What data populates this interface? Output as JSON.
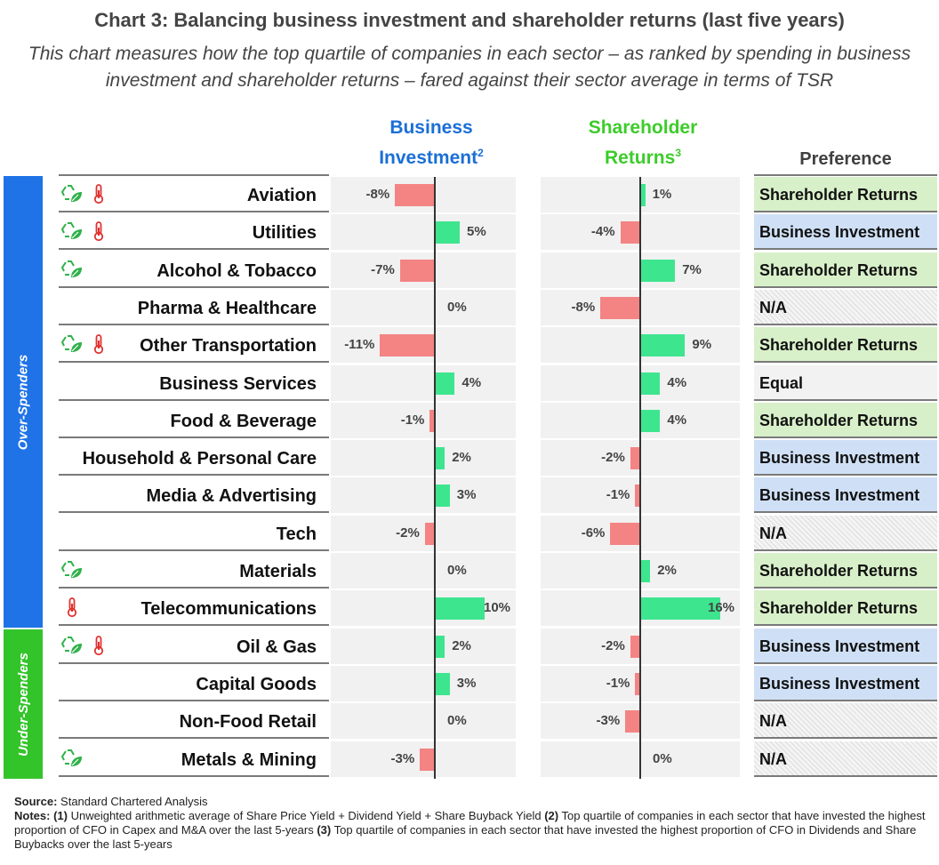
{
  "title": "Chart 3: Balancing business investment and shareholder returns (last five years)",
  "subtitle": "This chart measures how the top quartile of companies in each sector – as ranked by spending in business investment and shareholder returns – fared against their sector average in terms of TSR",
  "headers": {
    "investment_line1": "Business",
    "investment_line2": "Investment",
    "investment_note": "2",
    "returns_line1": "Shareholder",
    "returns_line2": "Returns",
    "returns_note": "3",
    "preference": "Preference"
  },
  "groups": {
    "over": "Over-Spenders",
    "under": "Under-Spenders"
  },
  "colors": {
    "investment_header": "#1a6fd6",
    "returns_header": "#3ccc2a",
    "over_spenders": "#1f73e6",
    "under_spenders": "#33c42a",
    "positive_bar": "#3ee58f",
    "negative_bar": "#f48383",
    "pref_shareholder": "#d8f0c9",
    "pref_business": "#cfe0f6",
    "pref_equal": "#f2f2f2",
    "pref_na": "#efefef"
  },
  "chart_data": {
    "type": "bar",
    "orientation": "horizontal",
    "ylim": [
      -12,
      16
    ],
    "categories": [
      "Aviation",
      "Utilities",
      "Alcohol & Tobacco",
      "Pharma & Healthcare",
      "Other Transportation",
      "Business Services",
      "Food & Beverage",
      "Household & Personal Care",
      "Media & Advertising",
      "Tech",
      "Materials",
      "Telecommunications",
      "Oil & Gas",
      "Capital Goods",
      "Non-Food Retail",
      "Metals & Mining"
    ],
    "series": [
      {
        "name": "Business Investment",
        "values": [
          -8,
          5,
          -7,
          0,
          -11,
          4,
          -1,
          2,
          3,
          -2,
          0,
          10,
          2,
          3,
          0,
          -3
        ],
        "labels": [
          "-8%",
          "5%",
          "-7%",
          "0%",
          "-11%",
          "4%",
          "-1%",
          "2%",
          "3%",
          "-2%",
          "0%",
          "10%",
          "2%",
          "3%",
          "0%",
          "-3%"
        ]
      },
      {
        "name": "Shareholder Returns",
        "values": [
          1,
          -4,
          7,
          -8,
          9,
          4,
          4,
          -2,
          -1,
          -6,
          2,
          16,
          -2,
          -1,
          -3,
          0
        ],
        "labels": [
          "1%",
          "-4%",
          "7%",
          "-8%",
          "9%",
          "4%",
          "4%",
          "-2%",
          "-1%",
          "-6%",
          "2%",
          "16%",
          "-2%",
          "-1%",
          "-3%",
          "0%"
        ]
      }
    ],
    "groups": [
      {
        "name": "Over-Spenders",
        "rows": 12
      },
      {
        "name": "Under-Spenders",
        "rows": 4
      }
    ],
    "preferences": [
      "Shareholder Returns",
      "Business Investment",
      "Shareholder Returns",
      "N/A",
      "Shareholder Returns",
      "Equal",
      "Shareholder Returns",
      "Business Investment",
      "Business Investment",
      "N/A",
      "Shareholder Returns",
      "Shareholder Returns",
      "Business Investment",
      "Business Investment",
      "N/A",
      "N/A"
    ],
    "icons": [
      [
        "recycle-leaf-icon",
        "thermometer-icon"
      ],
      [
        "recycle-leaf-icon",
        "thermometer-icon"
      ],
      [
        "recycle-leaf-icon"
      ],
      [],
      [
        "recycle-leaf-icon",
        "thermometer-icon"
      ],
      [],
      [],
      [],
      [],
      [],
      [
        "recycle-leaf-icon"
      ],
      [
        "thermometer-icon"
      ],
      [
        "recycle-leaf-icon",
        "thermometer-icon"
      ],
      [],
      [],
      [
        "recycle-leaf-icon"
      ]
    ]
  },
  "footer": {
    "source_label": "Source:",
    "source_text": "Standard Chartered Analysis",
    "notes_label": "Notes:",
    "note1_label": "(1)",
    "note1_text": "Unweighted arithmetic average of Share Price Yield + Dividend Yield + Share Buyback Yield",
    "note2_label": "(2)",
    "note2_text": "Top quartile of companies in each sector that have invested the highest proportion of CFO in Capex and M&A over the last 5-years",
    "note3_label": "(3)",
    "note3_text": "Top quartile of companies in each sector that have invested the highest proportion of CFO in Dividends and Share Buybacks over the last 5-years"
  }
}
